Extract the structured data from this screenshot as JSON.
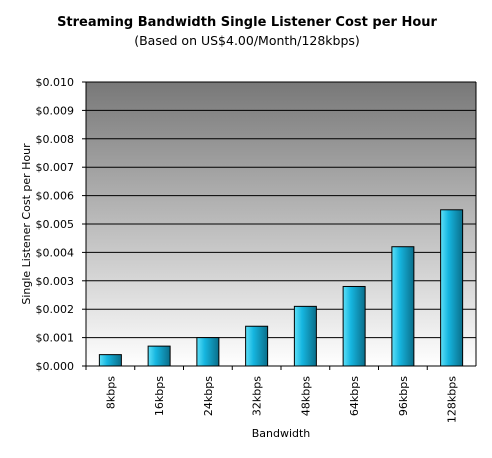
{
  "chart_data": {
    "type": "bar",
    "title": "Streaming Bandwidth Single Listener Cost per Hour",
    "subtitle": "(Based on US$4.00/Month/128kbps)",
    "xlabel": "Bandwidth",
    "ylabel": "Single Listener Cost per Hour",
    "categories": [
      "8kbps",
      "16kbps",
      "24kbps",
      "32kbps",
      "48kbps",
      "64kbps",
      "96kbps",
      "128kbps"
    ],
    "values": [
      0.0004,
      0.0007,
      0.001,
      0.0014,
      0.0021,
      0.0028,
      0.0042,
      0.0055
    ],
    "ylim": [
      0,
      0.01
    ],
    "yticks": [
      "$0.000",
      "$0.001",
      "$0.002",
      "$0.003",
      "$0.004",
      "$0.005",
      "$0.006",
      "$0.007",
      "$0.008",
      "$0.009",
      "$0.010"
    ],
    "grid": true,
    "legend": "none",
    "colors": {
      "bar_light": "#5ee0f8",
      "bar_mid": "#16b6e0",
      "bar_dark": "#0a6e8a",
      "bg_top": "#787878",
      "bg_bottom": "#ffffff"
    }
  }
}
